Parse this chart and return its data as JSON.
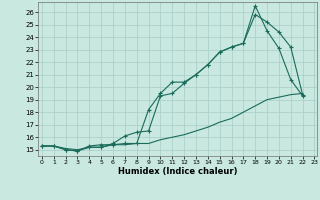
{
  "xlabel": "Humidex (Indice chaleur)",
  "background_color": "#c8e8e0",
  "grid_color": "#a8ccc8",
  "line_color": "#1a6b5a",
  "xlim": [
    -0.3,
    23.2
  ],
  "ylim": [
    14.5,
    26.8
  ],
  "xticks": [
    0,
    1,
    2,
    3,
    4,
    5,
    6,
    7,
    8,
    9,
    10,
    11,
    12,
    13,
    14,
    15,
    16,
    17,
    18,
    19,
    20,
    21,
    22,
    23
  ],
  "yticks": [
    15,
    16,
    17,
    18,
    19,
    20,
    21,
    22,
    23,
    24,
    25,
    26
  ],
  "line1_x": [
    0,
    1,
    2,
    3,
    4,
    5,
    6,
    7,
    8,
    9,
    10,
    11,
    12,
    13,
    14,
    15,
    16,
    17,
    18,
    19,
    20,
    21,
    22
  ],
  "line1_y": [
    15.3,
    15.3,
    15.0,
    14.9,
    15.3,
    15.4,
    15.4,
    15.5,
    15.5,
    18.2,
    19.5,
    20.4,
    20.4,
    21.0,
    21.8,
    22.8,
    23.2,
    23.5,
    26.5,
    24.5,
    23.1,
    20.6,
    19.3
  ],
  "line2_x": [
    0,
    1,
    2,
    3,
    4,
    5,
    6,
    7,
    8,
    9,
    10,
    11,
    12,
    13,
    14,
    15,
    16,
    17,
    18,
    19,
    20,
    21,
    22
  ],
  "line2_y": [
    15.3,
    15.3,
    15.0,
    14.9,
    15.2,
    15.2,
    15.5,
    16.1,
    16.4,
    16.5,
    19.3,
    19.5,
    20.3,
    21.0,
    21.8,
    22.8,
    23.2,
    23.5,
    25.8,
    25.2,
    24.4,
    23.2,
    19.4
  ],
  "line3_x": [
    0,
    1,
    2,
    3,
    4,
    5,
    6,
    7,
    8,
    9,
    10,
    11,
    12,
    13,
    14,
    15,
    16,
    17,
    18,
    19,
    20,
    21,
    22
  ],
  "line3_y": [
    15.3,
    15.3,
    15.1,
    15.0,
    15.2,
    15.2,
    15.4,
    15.4,
    15.5,
    15.5,
    15.8,
    16.0,
    16.2,
    16.5,
    16.8,
    17.2,
    17.5,
    18.0,
    18.5,
    19.0,
    19.2,
    19.4,
    19.5
  ]
}
